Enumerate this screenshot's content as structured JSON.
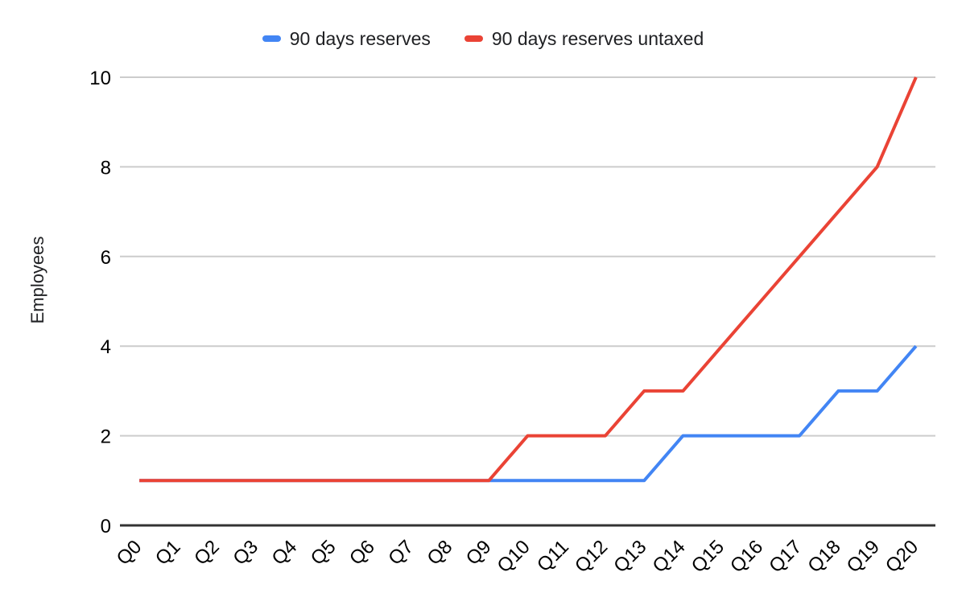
{
  "chart": {
    "title": "",
    "y_axis_title": "Employees"
  },
  "chart_data": {
    "type": "line",
    "title": "",
    "xlabel": "",
    "ylabel": "Employees",
    "categories": [
      "Q0",
      "Q1",
      "Q2",
      "Q3",
      "Q4",
      "Q5",
      "Q6",
      "Q7",
      "Q8",
      "Q9",
      "Q10",
      "Q11",
      "Q12",
      "Q13",
      "Q14",
      "Q15",
      "Q16",
      "Q17",
      "Q18",
      "Q19",
      "Q20"
    ],
    "series": [
      {
        "name": "90 days reserves",
        "color": "#4285F4",
        "values": [
          1,
          1,
          1,
          1,
          1,
          1,
          1,
          1,
          1,
          1,
          1,
          1,
          1,
          1,
          2,
          2,
          2,
          2,
          3,
          3,
          4
        ]
      },
      {
        "name": "90 days reserves untaxed",
        "color": "#EA4335",
        "values": [
          1,
          1,
          1,
          1,
          1,
          1,
          1,
          1,
          1,
          1,
          2,
          2,
          2,
          3,
          3,
          4,
          5,
          6,
          7,
          8,
          10
        ]
      }
    ],
    "ylim": [
      0,
      10
    ],
    "yticks": [
      0,
      2,
      4,
      6,
      8,
      10
    ],
    "grid": true,
    "legend_position": "top",
    "colors": {
      "gridline": "#cccccc",
      "axis_baseline": "#333333",
      "tick_text": "#000000",
      "legend_text": "#202124"
    }
  }
}
